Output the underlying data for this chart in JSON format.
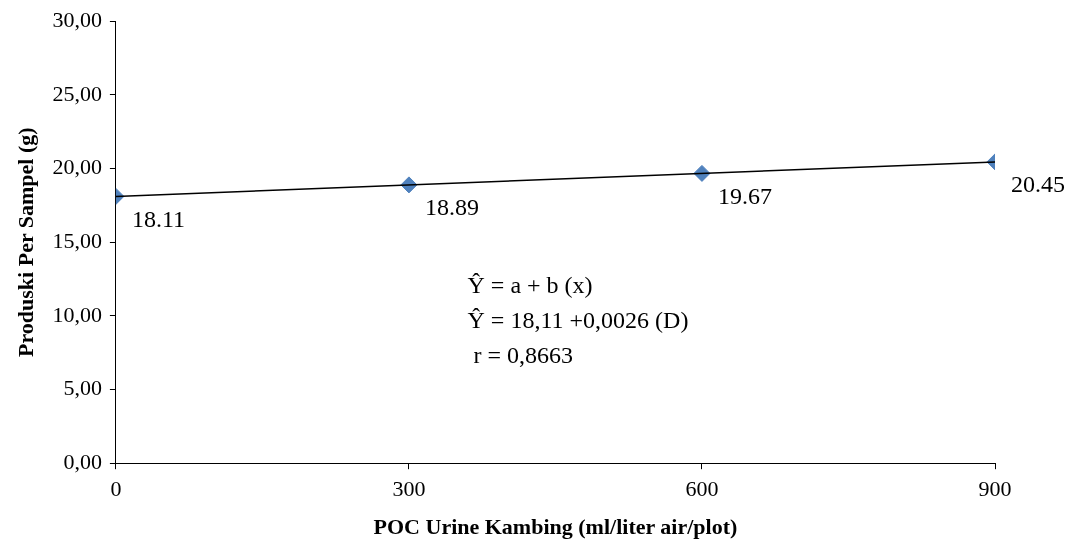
{
  "chart_data": {
    "type": "scatter",
    "xlabel": "POC Urine Kambing (ml/liter air/plot)",
    "ylabel": "Produski Per Sampel (g)",
    "xlim": [
      0,
      900
    ],
    "xticks": [
      0,
      300,
      600,
      900
    ],
    "ylim": [
      0,
      30
    ],
    "yticks": [
      {
        "value": 0,
        "label": "0,00"
      },
      {
        "value": 5,
        "label": "5,00"
      },
      {
        "value": 10,
        "label": "10,00"
      },
      {
        "value": 15,
        "label": "15,00"
      },
      {
        "value": 20,
        "label": "20,00"
      },
      {
        "value": 25,
        "label": "25,00"
      },
      {
        "value": 30,
        "label": "30,00"
      }
    ],
    "series": [
      {
        "color": "#4f81bd",
        "x": [
          0,
          300,
          600,
          900
        ],
        "values": [
          18.11,
          18.89,
          19.67,
          20.45
        ],
        "marker": "diamond",
        "data_labels": true
      },
      {
        "type": "line",
        "color": "#000000",
        "x": [
          0,
          900
        ],
        "values": [
          18.11,
          20.45
        ],
        "marker": "none",
        "line_style": "solid"
      }
    ],
    "annotations": [
      "Ŷ = a + b (x)",
      "Ŷ = 18,11 +0,0026 (D)",
      " r = 0,8663"
    ],
    "grid": false,
    "legend": false
  }
}
